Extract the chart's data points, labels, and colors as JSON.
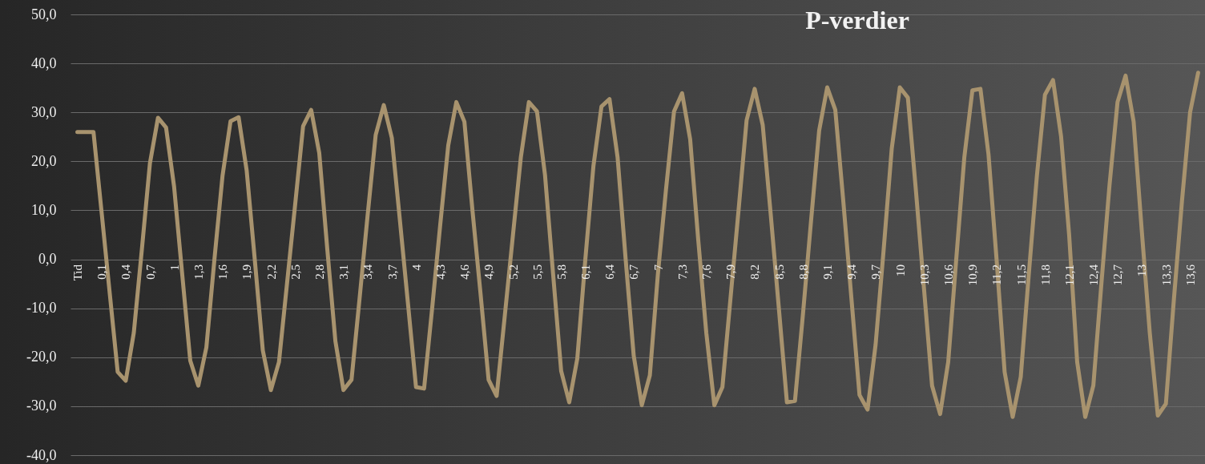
{
  "chart_data": {
    "type": "line",
    "title": "P-verdier",
    "categories": [
      "Tid",
      null,
      null,
      "0,1",
      null,
      null,
      "0,4",
      null,
      null,
      "0,7",
      null,
      null,
      "1",
      null,
      null,
      "1,3",
      null,
      null,
      "1,6",
      null,
      null,
      "1,9",
      null,
      null,
      "2,2",
      null,
      null,
      "2,5",
      null,
      null,
      "2,8",
      null,
      null,
      "3,1",
      null,
      null,
      "3,4",
      null,
      null,
      "3,7",
      null,
      null,
      "4",
      null,
      null,
      "4,3",
      null,
      null,
      "4,6",
      null,
      null,
      "4,9",
      null,
      null,
      "5,2",
      null,
      null,
      "5,5",
      null,
      null,
      "5,8",
      null,
      null,
      "6,1",
      null,
      null,
      "6,4",
      null,
      null,
      "6,7",
      null,
      null,
      "7",
      null,
      null,
      "7,3",
      null,
      null,
      "7,6",
      null,
      null,
      "7,9",
      null,
      null,
      "8,2",
      null,
      null,
      "8,5",
      null,
      null,
      "8,8",
      null,
      null,
      "9,1",
      null,
      null,
      "9,4",
      null,
      null,
      "9,7",
      null,
      null,
      "10",
      null,
      null,
      "10,3",
      null,
      null,
      "10,6",
      null,
      null,
      "10,9",
      null,
      null,
      "11,2",
      null,
      null,
      "11,5",
      null,
      null,
      "11,8",
      null,
      null,
      "12,1",
      null,
      null,
      "12,4",
      null,
      null,
      "12,7",
      null,
      null,
      "13",
      null,
      null,
      "13,3",
      null,
      null,
      "13,6",
      null
    ],
    "series": [
      {
        "color": "#a8936e",
        "values": [
          26,
          26,
          26,
          9.7,
          -6.7,
          -23,
          -24.8,
          -15,
          2,
          19.6,
          28.9,
          26.9,
          14.8,
          -3,
          -20.7,
          -25.8,
          -18,
          0,
          17,
          28.2,
          29,
          18.1,
          0,
          -18.6,
          -26.7,
          -21,
          -5,
          11,
          27.2,
          30.5,
          21.7,
          2,
          -16.7,
          -26.7,
          -24.6,
          -8,
          9,
          25.4,
          31.5,
          24.8,
          8,
          -9,
          -26.1,
          -26.4,
          -10,
          7,
          23.3,
          32.1,
          28.1,
          10,
          -7,
          -24.6,
          -27.9,
          -11.7,
          4.6,
          20.8,
          32.1,
          30.2,
          17.2,
          -3,
          -22.8,
          -29.2,
          -20.3,
          0,
          19,
          31.2,
          32.7,
          20.8,
          0,
          -19.7,
          -29.8,
          -23.7,
          -3,
          14.2,
          30.2,
          33.9,
          24.5,
          4,
          -15,
          -29.8,
          -26.1,
          -8,
          10,
          28.4,
          34.8,
          27.4,
          9,
          -10,
          -29.2,
          -28.9,
          -11,
          8,
          26.3,
          35.1,
          30.5,
          11.7,
          -8,
          -27.7,
          -30.7,
          -17.4,
          2,
          22.6,
          35.1,
          33,
          14,
          -6,
          -25.8,
          -31.6,
          -21,
          0,
          20.8,
          34.5,
          34.8,
          21.4,
          0,
          -23,
          -32.2,
          -24,
          -3,
          17,
          33.6,
          36.6,
          25.1,
          5,
          -21,
          -32.2,
          -25.8,
          -5,
          15,
          32.1,
          37.5,
          28.1,
          6,
          -15,
          -31.9,
          -29.5,
          -8,
          12,
          30,
          38.1
        ]
      }
    ],
    "ylim": [
      -40,
      50
    ],
    "yticks": [
      {
        "value": -40,
        "label": "-40,0"
      },
      {
        "value": -30,
        "label": "-30,0"
      },
      {
        "value": -20,
        "label": "-20,0"
      },
      {
        "value": -10,
        "label": "-10,0"
      },
      {
        "value": 0,
        "label": "0,0"
      },
      {
        "value": 10,
        "label": "10,0"
      },
      {
        "value": 20,
        "label": "20,0"
      },
      {
        "value": 30,
        "label": "30,0"
      },
      {
        "value": 40,
        "label": "40,0"
      },
      {
        "value": 50,
        "label": "50,0"
      }
    ],
    "grid": "y",
    "legend": false,
    "marker": "none",
    "line_style": "solid"
  }
}
